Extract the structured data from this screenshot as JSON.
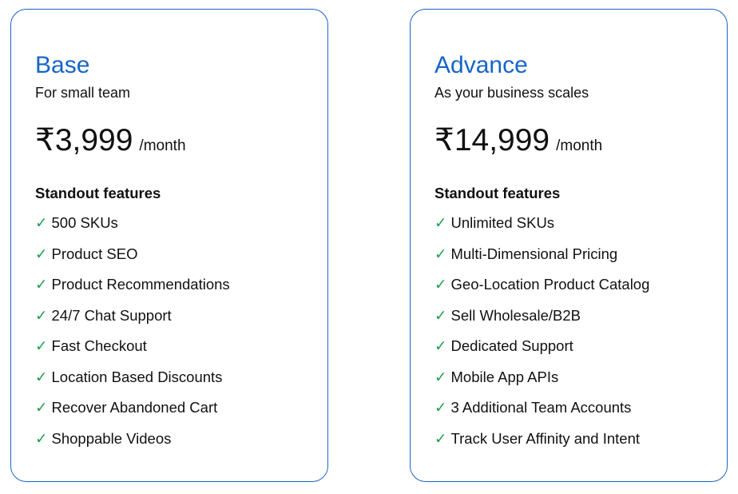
{
  "plans": [
    {
      "name": "Base",
      "tagline": "For small team",
      "price": "₹3,999",
      "period": "/month",
      "features_heading": "Standout features",
      "check_icon": "✓",
      "features": [
        "500 SKUs",
        "Product SEO",
        "Product Recommendations",
        "24/7 Chat Support",
        "Fast Checkout",
        "Location Based Discounts",
        "Recover Abandoned Cart",
        "Shoppable Videos"
      ]
    },
    {
      "name": "Advance",
      "tagline": "As your business scales",
      "price": "₹14,999",
      "period": "/month",
      "features_heading": "Standout features",
      "check_icon": "✓",
      "features": [
        "Unlimited SKUs",
        "Multi-Dimensional Pricing",
        "Geo-Location Product Catalog",
        "Sell Wholesale/B2B",
        "Dedicated Support",
        "Mobile App APIs",
        "3 Additional Team Accounts",
        "Track User Affinity and Intent"
      ]
    }
  ],
  "colors": {
    "accent": "#1565c8",
    "border": "#1b63c4",
    "check": "#1f9d4f"
  }
}
